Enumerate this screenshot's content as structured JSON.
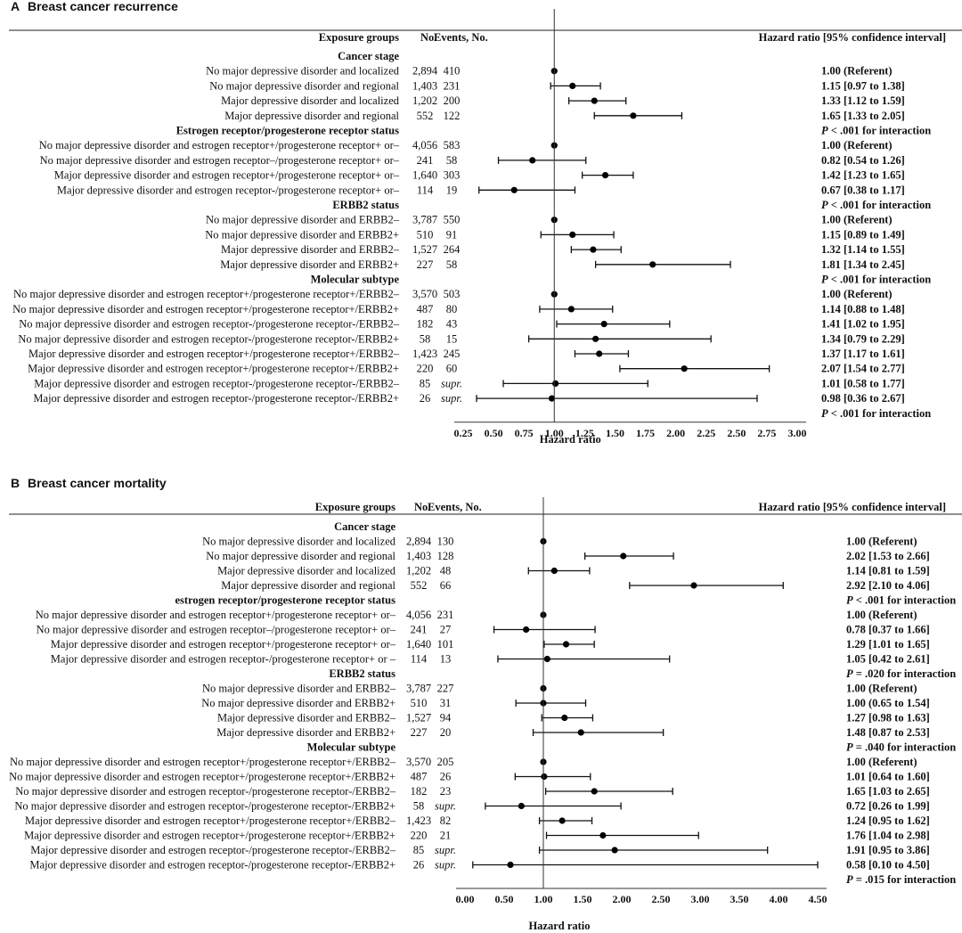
{
  "panels": [
    {
      "letter": "A",
      "title": "Breast cancer recurrence",
      "headers": {
        "groups": "Exposure groups",
        "no": "No.",
        "events": "Events, No.",
        "hr": "Hazard ratio [95% confidence interval]"
      },
      "xlabel": "Hazard ratio",
      "xlim": [
        0.25,
        3.0
      ],
      "ticks": [
        "0.25",
        "0.50",
        "0.75",
        "1.00",
        "1.25",
        "1.50",
        "1.75",
        "2.00",
        "2.25",
        "2.50",
        "2.75",
        "3.00"
      ],
      "rows": [
        {
          "kind": "section",
          "label": "Cancer stage"
        },
        {
          "label": "No major depressive disorder and localized",
          "no": "2,894",
          "events": "410",
          "hr": 1.0,
          "lo": 1.0,
          "hi": 1.0,
          "ci": "1.00 (Referent)"
        },
        {
          "label": "No major depressive disorder and regional",
          "no": "1,403",
          "events": "231",
          "hr": 1.15,
          "lo": 0.97,
          "hi": 1.38,
          "ci": "1.15 [0.97 to 1.38]"
        },
        {
          "label": "Major depressive disorder and localized",
          "no": "1,202",
          "events": "200",
          "hr": 1.33,
          "lo": 1.12,
          "hi": 1.59,
          "ci": "1.33 [1.12 to 1.59]"
        },
        {
          "label": "Major depressive disorder and regional",
          "no": "552",
          "events": "122",
          "hr": 1.65,
          "lo": 1.33,
          "hi": 2.05,
          "ci": "1.65 [1.33 to 2.05]"
        },
        {
          "kind": "section",
          "label": "Estrogen receptor/progesterone receptor status",
          "pnote": "P < .001 for interaction"
        },
        {
          "label": "No major depressive disorder and estrogen receptor+/progesterone receptor+ or–",
          "no": "4,056",
          "events": "583",
          "hr": 1.0,
          "lo": 1.0,
          "hi": 1.0,
          "ci": "1.00 (Referent)"
        },
        {
          "label": "No major depressive disorder and estrogen receptor–/progesterone receptor+ or–",
          "no": "241",
          "events": "58",
          "hr": 0.82,
          "lo": 0.54,
          "hi": 1.26,
          "ci": "0.82 [0.54 to 1.26]"
        },
        {
          "label": "Major depressive disorder and estrogen receptor+/progesterone receptor+ or–",
          "no": "1,640",
          "events": "303",
          "hr": 1.42,
          "lo": 1.23,
          "hi": 1.65,
          "ci": "1.42 [1.23 to 1.65]"
        },
        {
          "label": "Major depressive disorder and estrogen receptor-/progesterone receptor+ or–",
          "no": "114",
          "events": "19",
          "hr": 0.67,
          "lo": 0.38,
          "hi": 1.17,
          "ci": "0.67 [0.38 to 1.17]"
        },
        {
          "kind": "section",
          "label": "ERBB2 status",
          "pnote": "P < .001 for interaction"
        },
        {
          "label": "No major depressive disorder and ERBB2–",
          "no": "3,787",
          "events": "550",
          "hr": 1.0,
          "lo": 1.0,
          "hi": 1.0,
          "ci": "1.00 (Referent)"
        },
        {
          "label": "No major depressive disorder and ERBB2+",
          "no": "510",
          "events": "91",
          "hr": 1.15,
          "lo": 0.89,
          "hi": 1.49,
          "ci": "1.15 [0.89 to 1.49]"
        },
        {
          "label": "Major depressive disorder and ERBB2–",
          "no": "1,527",
          "events": "264",
          "hr": 1.32,
          "lo": 1.14,
          "hi": 1.55,
          "ci": "1.32 [1.14 to 1.55]"
        },
        {
          "label": "Major depressive disorder and ERBB2+",
          "no": "227",
          "events": "58",
          "hr": 1.81,
          "lo": 1.34,
          "hi": 2.45,
          "ci": "1.81 [1.34 to 2.45]"
        },
        {
          "kind": "section",
          "label": "Molecular subtype",
          "pnote": "P < .001 for interaction"
        },
        {
          "label": "No major depressive disorder and estrogen receptor+/progesterone receptor+/ERBB2–",
          "no": "3,570",
          "events": "503",
          "hr": 1.0,
          "lo": 1.0,
          "hi": 1.0,
          "ci": "1.00 (Referent)"
        },
        {
          "label": "No major depressive disorder and estrogen receptor+/progesterone receptor+/ERBB2+",
          "no": "487",
          "events": "80",
          "hr": 1.14,
          "lo": 0.88,
          "hi": 1.48,
          "ci": "1.14 [0.88 to 1.48]"
        },
        {
          "label": "No major depressive disorder and estrogen receptor-/progesterone receptor-/ERBB2–",
          "no": "182",
          "events": "43",
          "hr": 1.41,
          "lo": 1.02,
          "hi": 1.95,
          "ci": "1.41 [1.02 to 1.95]"
        },
        {
          "label": "No major depressive disorder and estrogen receptor-/progesterone receptor-/ERBB2+",
          "no": "58",
          "events": "15",
          "hr": 1.34,
          "lo": 0.79,
          "hi": 2.29,
          "ci": "1.34 [0.79 to 2.29]"
        },
        {
          "label": "Major depressive disorder and estrogen receptor+/progesterone receptor+/ERBB2–",
          "no": "1,423",
          "events": "245",
          "hr": 1.37,
          "lo": 1.17,
          "hi": 1.61,
          "ci": "1.37 [1.17 to 1.61]"
        },
        {
          "label": "Major depressive disorder and estrogen receptor+/progesterone receptor+/ERBB2+",
          "no": "220",
          "events": "60",
          "hr": 2.07,
          "lo": 1.54,
          "hi": 2.77,
          "ci": "2.07 [1.54 to 2.77]"
        },
        {
          "label": "Major depressive disorder and estrogen receptor-/progesterone receptor-/ERBB2–",
          "no": "85",
          "events": "supr.",
          "hr": 1.01,
          "lo": 0.58,
          "hi": 1.77,
          "ci": "1.01 [0.58 to 1.77]"
        },
        {
          "label": "Major depressive disorder and estrogen receptor-/progesterone receptor-/ERBB2+",
          "no": "26",
          "events": "supr.",
          "hr": 0.98,
          "lo": 0.36,
          "hi": 2.67,
          "ci": "0.98 [0.36 to 2.67]"
        },
        {
          "kind": "pnote",
          "pnote": "P < .001 for interaction"
        }
      ]
    },
    {
      "letter": "B",
      "title": "Breast cancer mortality",
      "headers": {
        "groups": "Exposure groups",
        "no": "No.",
        "events": "Events, No.",
        "hr": "Hazard ratio [95% confidence interval]"
      },
      "xlabel": "Hazard ratio",
      "xlim": [
        0.0,
        4.5
      ],
      "ticks": [
        "0.00",
        "0.50",
        "1.00",
        "1.50",
        "2.00",
        "2.50",
        "3.00",
        "3.50",
        "4.00",
        "4.50"
      ],
      "rows": [
        {
          "kind": "section",
          "label": "Cancer stage"
        },
        {
          "label": "No major depressive disorder and localized",
          "no": "2,894",
          "events": "130",
          "hr": 1.0,
          "lo": 1.0,
          "hi": 1.0,
          "ci": "1.00 (Referent)"
        },
        {
          "label": "No major depressive disorder and regional",
          "no": "1,403",
          "events": "128",
          "hr": 2.02,
          "lo": 1.53,
          "hi": 2.66,
          "ci": "2.02 [1.53 to 2.66]"
        },
        {
          "label": "Major depressive disorder and localized",
          "no": "1,202",
          "events": "48",
          "hr": 1.14,
          "lo": 0.81,
          "hi": 1.59,
          "ci": "1.14 [0.81 to 1.59]"
        },
        {
          "label": "Major depressive disorder and regional",
          "no": "552",
          "events": "66",
          "hr": 2.92,
          "lo": 2.1,
          "hi": 4.06,
          "ci": "2.92 [2.10 to 4.06]"
        },
        {
          "kind": "section",
          "label": "estrogen receptor/progesterone receptor status",
          "pnote": "P < .001 for interaction"
        },
        {
          "label": "No major depressive disorder and estrogen receptor+/progesterone receptor+ or–",
          "no": "4,056",
          "events": "231",
          "hr": 1.0,
          "lo": 1.0,
          "hi": 1.0,
          "ci": "1.00 (Referent)"
        },
        {
          "label": "No major depressive disorder and estrogen receptor–/progesterone receptor+ or–",
          "no": "241",
          "events": "27",
          "hr": 0.78,
          "lo": 0.37,
          "hi": 1.66,
          "ci": "0.78 [0.37 to 1.66]"
        },
        {
          "label": "Major depressive disorder and estrogen receptor+/progesterone receptor+ or–",
          "no": "1,640",
          "events": "101",
          "hr": 1.29,
          "lo": 1.01,
          "hi": 1.65,
          "ci": "1.29 [1.01 to 1.65]"
        },
        {
          "label": "Major depressive disorder and estrogen receptor-/progesterone receptor+ or –",
          "no": "114",
          "events": "13",
          "hr": 1.05,
          "lo": 0.42,
          "hi": 2.61,
          "ci": "1.05 [0.42 to 2.61]"
        },
        {
          "kind": "section",
          "label": "ERBB2 status",
          "pnote": "P = .020 for interaction"
        },
        {
          "label": "No major depressive disorder and ERBB2–",
          "no": "3,787",
          "events": "227",
          "hr": 1.0,
          "lo": 1.0,
          "hi": 1.0,
          "ci": "1.00 (Referent)"
        },
        {
          "label": "No major depressive disorder and ERBB2+",
          "no": "510",
          "events": "31",
          "hr": 1.0,
          "lo": 0.65,
          "hi": 1.54,
          "ci": "1.00 (0.65 to 1.54]"
        },
        {
          "label": "Major depressive disorder and ERBB2–",
          "no": "1,527",
          "events": "94",
          "hr": 1.27,
          "lo": 0.98,
          "hi": 1.63,
          "ci": "1.27 [0.98 to 1.63]"
        },
        {
          "label": "Major depressive disorder and ERBB2+",
          "no": "227",
          "events": "20",
          "hr": 1.48,
          "lo": 0.87,
          "hi": 2.53,
          "ci": "1.48 [0.87 to 2.53]"
        },
        {
          "kind": "section",
          "label": "Molecular subtype",
          "pnote": "P = .040 for interaction"
        },
        {
          "label": "No major depressive disorder and estrogen receptor+/progesterone receptor+/ERBB2–",
          "no": "3,570",
          "events": "205",
          "hr": 1.0,
          "lo": 1.0,
          "hi": 1.0,
          "ci": "1.00 (Referent)"
        },
        {
          "label": "No major depressive disorder and estrogen receptor+/progesterone receptor+/ERBB2+",
          "no": "487",
          "events": "26",
          "hr": 1.01,
          "lo": 0.64,
          "hi": 1.6,
          "ci": "1.01 [0.64 to 1.60]"
        },
        {
          "label": "No major depressive disorder and estrogen receptor-/progesterone receptor-/ERBB2–",
          "no": "182",
          "events": "23",
          "hr": 1.65,
          "lo": 1.03,
          "hi": 2.65,
          "ci": "1.65 [1.03 to 2.65]"
        },
        {
          "label": "No major depressive disorder and estrogen receptor-/progesterone receptor-/ERBB2+",
          "no": "58",
          "events": "supr.",
          "hr": 0.72,
          "lo": 0.26,
          "hi": 1.99,
          "ci": "0.72 [0.26 to 1.99]"
        },
        {
          "label": "Major depressive disorder and estrogen receptor+/progesterone receptor+/ERBB2–",
          "no": "1,423",
          "events": "82",
          "hr": 1.24,
          "lo": 0.95,
          "hi": 1.62,
          "ci": "1.24 [0.95 to 1.62]"
        },
        {
          "label": "Major depressive disorder and estrogen receptor+/progesterone receptor+/ERBB2+",
          "no": "220",
          "events": "21",
          "hr": 1.76,
          "lo": 1.04,
          "hi": 2.98,
          "ci": "1.76 [1.04 to 2.98]"
        },
        {
          "label": "Major depressive disorder and estrogen receptor-/progesterone receptor-/ERBB2–",
          "no": "85",
          "events": "supr.",
          "hr": 1.91,
          "lo": 0.95,
          "hi": 3.86,
          "ci": "1.91 [0.95 to 3.86]"
        },
        {
          "label": "Major depressive disorder and estrogen receptor-/progesterone receptor-/ERBB2+",
          "no": "26",
          "events": "supr.",
          "hr": 0.58,
          "lo": 0.1,
          "hi": 4.5,
          "ci": "0.58 [0.10 to 4.50]"
        },
        {
          "kind": "pnote",
          "pnote": "P = .015 for interaction"
        }
      ]
    }
  ],
  "chart_data": [
    {
      "type": "forest",
      "title": "Breast cancer recurrence",
      "xlabel": "Hazard ratio",
      "xlim": [
        0.25,
        3.0
      ],
      "reference_line": 1.0,
      "categories": [
        "No major depressive disorder and localized",
        "No major depressive disorder and regional",
        "Major depressive disorder and localized",
        "Major depressive disorder and regional",
        "No major depressive disorder and estrogen receptor+/progesterone receptor+ or–",
        "No major depressive disorder and estrogen receptor–/progesterone receptor+ or–",
        "Major depressive disorder and estrogen receptor+/progesterone receptor+ or–",
        "Major depressive disorder and estrogen receptor-/progesterone receptor+ or–",
        "No major depressive disorder and ERBB2–",
        "No major depressive disorder and ERBB2+",
        "Major depressive disorder and ERBB2–",
        "Major depressive disorder and ERBB2+",
        "No major depressive disorder and estrogen receptor+/progesterone receptor+/ERBB2–",
        "No major depressive disorder and estrogen receptor+/progesterone receptor+/ERBB2+",
        "No major depressive disorder and estrogen receptor-/progesterone receptor-/ERBB2–",
        "No major depressive disorder and estrogen receptor-/progesterone receptor-/ERBB2+",
        "Major depressive disorder and estrogen receptor+/progesterone receptor+/ERBB2–",
        "Major depressive disorder and estrogen receptor+/progesterone receptor+/ERBB2+",
        "Major depressive disorder and estrogen receptor-/progesterone receptor-/ERBB2–",
        "Major depressive disorder and estrogen receptor-/progesterone receptor-/ERBB2+"
      ],
      "hr": [
        1.0,
        1.15,
        1.33,
        1.65,
        1.0,
        0.82,
        1.42,
        0.67,
        1.0,
        1.15,
        1.32,
        1.81,
        1.0,
        1.14,
        1.41,
        1.34,
        1.37,
        2.07,
        1.01,
        0.98
      ],
      "lower": [
        1.0,
        0.97,
        1.12,
        1.33,
        1.0,
        0.54,
        1.23,
        0.38,
        1.0,
        0.89,
        1.14,
        1.34,
        1.0,
        0.88,
        1.02,
        0.79,
        1.17,
        1.54,
        0.58,
        0.36
      ],
      "upper": [
        1.0,
        1.38,
        1.59,
        2.05,
        1.0,
        1.26,
        1.65,
        1.17,
        1.0,
        1.49,
        1.55,
        2.45,
        1.0,
        1.48,
        1.95,
        2.29,
        1.61,
        2.77,
        1.77,
        2.67
      ]
    },
    {
      "type": "forest",
      "title": "Breast cancer mortality",
      "xlabel": "Hazard ratio",
      "xlim": [
        0.0,
        4.5
      ],
      "reference_line": 1.0,
      "categories": [
        "No major depressive disorder and localized",
        "No major depressive disorder and regional",
        "Major depressive disorder and localized",
        "Major depressive disorder and regional",
        "No major depressive disorder and estrogen receptor+/progesterone receptor+ or–",
        "No major depressive disorder and estrogen receptor–/progesterone receptor+ or–",
        "Major depressive disorder and estrogen receptor+/progesterone receptor+ or–",
        "Major depressive disorder and estrogen receptor-/progesterone receptor+ or –",
        "No major depressive disorder and ERBB2–",
        "No major depressive disorder and ERBB2+",
        "Major depressive disorder and ERBB2–",
        "Major depressive disorder and ERBB2+",
        "No major depressive disorder and estrogen receptor+/progesterone receptor+/ERBB2–",
        "No major depressive disorder and estrogen receptor+/progesterone receptor+/ERBB2+",
        "No major depressive disorder and estrogen receptor-/progesterone receptor-/ERBB2–",
        "No major depressive disorder and estrogen receptor-/progesterone receptor-/ERBB2+",
        "Major depressive disorder and estrogen receptor+/progesterone receptor+/ERBB2–",
        "Major depressive disorder and estrogen receptor+/progesterone receptor+/ERBB2+",
        "Major depressive disorder and estrogen receptor-/progesterone receptor-/ERBB2–",
        "Major depressive disorder and estrogen receptor-/progesterone receptor-/ERBB2+"
      ],
      "hr": [
        1.0,
        2.02,
        1.14,
        2.92,
        1.0,
        0.78,
        1.29,
        1.05,
        1.0,
        1.0,
        1.27,
        1.48,
        1.0,
        1.01,
        1.65,
        0.72,
        1.24,
        1.76,
        1.91,
        0.58
      ],
      "lower": [
        1.0,
        1.53,
        0.81,
        2.1,
        1.0,
        0.37,
        1.01,
        0.42,
        1.0,
        0.65,
        0.98,
        0.87,
        1.0,
        0.64,
        1.03,
        0.26,
        0.95,
        1.04,
        0.95,
        0.1
      ],
      "upper": [
        1.0,
        2.66,
        1.59,
        4.06,
        1.0,
        1.66,
        1.65,
        2.61,
        1.0,
        1.54,
        1.63,
        2.53,
        1.0,
        1.6,
        2.65,
        1.99,
        1.62,
        2.98,
        3.86,
        4.5
      ]
    }
  ]
}
